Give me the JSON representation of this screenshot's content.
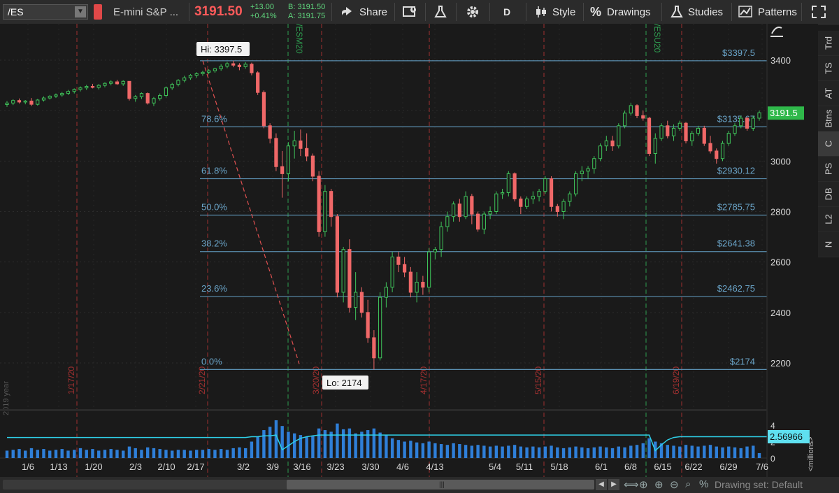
{
  "header": {
    "symbol": "/ES",
    "description": "E-mini S&P ...",
    "last": "3191.50",
    "change": "+13.00",
    "change_pct": "+0.41%",
    "bid": "B: 3191.50",
    "ask": "A: 3191.75",
    "share_label": "Share",
    "aggregation": "D",
    "style_label": "Style",
    "drawings_label": "Drawings",
    "studies_label": "Studies",
    "patterns_label": "Patterns",
    "icons": [
      "share-icon",
      "alert-icon",
      "flask-icon",
      "gear-icon",
      "candle-icon",
      "percent-icon",
      "studies-flask-icon",
      "patterns-icon"
    ]
  },
  "right_tabs": [
    "Trd",
    "TS",
    "AT",
    "Btns",
    "C",
    "PS",
    "DB",
    "L2",
    "N"
  ],
  "bottom": {
    "drawing_set": "Drawing set: Default"
  },
  "side_label": "2019 year",
  "volume_axis_label": "<millions>",
  "chart_data": {
    "type": "candlestick",
    "price_axis": {
      "ticks": [
        2200,
        2400,
        2600,
        2800,
        3000,
        3200,
        3400
      ],
      "range": [
        2040,
        3540
      ]
    },
    "volume_axis": {
      "ticks": [
        0,
        2,
        4
      ],
      "range": [
        0,
        4.8
      ]
    },
    "last_price_label": "3191.5",
    "volume_label": "2.56966",
    "x_ticks": [
      "1/6",
      "1/13",
      "1/20",
      "2/3",
      "2/10",
      "2/17",
      "3/2",
      "3/9",
      "3/16",
      "3/23",
      "3/30",
      "4/6",
      "4/13",
      "5/4",
      "5/11",
      "5/18",
      "6/1",
      "6/8",
      "6/15",
      "6/22",
      "6/29",
      "7/6"
    ],
    "hi_label": "Hi: 3397.5",
    "lo_label": "Lo: 2174",
    "fib_levels": [
      {
        "price": 3397.5,
        "pct": "",
        "label": "$3397.5"
      },
      {
        "price": 3135.67,
        "pct": "78.6%",
        "label": "$3135.67"
      },
      {
        "price": 2930.12,
        "pct": "61.8%",
        "label": "$2930.12"
      },
      {
        "price": 2785.75,
        "pct": "50.0%",
        "label": "$2785.75"
      },
      {
        "price": 2641.38,
        "pct": "38.2%",
        "label": "$2641.38"
      },
      {
        "price": 2462.75,
        "pct": "23.6%",
        "label": "$2462.75"
      },
      {
        "price": 2174,
        "pct": "0.0%",
        "label": "$2174"
      }
    ],
    "red_markers": [
      "1/17/20",
      "2/21/20",
      "3/20/20",
      "4/17/20",
      "5/15/20",
      "6/19/20"
    ],
    "green_markers": [
      "/ESM20",
      "/ESU20"
    ],
    "candles": [
      [
        3224,
        3238,
        3215,
        3230
      ],
      [
        3230,
        3245,
        3222,
        3240
      ],
      [
        3240,
        3248,
        3228,
        3234
      ],
      [
        3234,
        3242,
        3225,
        3238
      ],
      [
        3238,
        3250,
        3218,
        3225
      ],
      [
        3225,
        3246,
        3220,
        3242
      ],
      [
        3242,
        3256,
        3236,
        3250
      ],
      [
        3250,
        3262,
        3244,
        3257
      ],
      [
        3257,
        3268,
        3250,
        3262
      ],
      [
        3262,
        3274,
        3255,
        3268
      ],
      [
        3268,
        3282,
        3262,
        3276
      ],
      [
        3276,
        3288,
        3268,
        3284
      ],
      [
        3284,
        3296,
        3276,
        3290
      ],
      [
        3290,
        3302,
        3282,
        3296
      ],
      [
        3296,
        3306,
        3288,
        3292
      ],
      [
        3292,
        3305,
        3284,
        3300
      ],
      [
        3300,
        3312,
        3292,
        3308
      ],
      [
        3308,
        3320,
        3300,
        3314
      ],
      [
        3314,
        3322,
        3302,
        3306
      ],
      [
        3306,
        3320,
        3298,
        3316
      ],
      [
        3316,
        3316,
        3240,
        3248
      ],
      [
        3248,
        3262,
        3235,
        3255
      ],
      [
        3255,
        3272,
        3246,
        3268
      ],
      [
        3268,
        3272,
        3224,
        3230
      ],
      [
        3230,
        3254,
        3218,
        3248
      ],
      [
        3248,
        3268,
        3240,
        3260
      ],
      [
        3260,
        3296,
        3252,
        3290
      ],
      [
        3290,
        3310,
        3282,
        3304
      ],
      [
        3304,
        3325,
        3296,
        3320
      ],
      [
        3320,
        3338,
        3312,
        3330
      ],
      [
        3330,
        3345,
        3322,
        3340
      ],
      [
        3340,
        3352,
        3330,
        3346
      ],
      [
        3346,
        3358,
        3338,
        3352
      ],
      [
        3352,
        3364,
        3344,
        3358
      ],
      [
        3358,
        3370,
        3350,
        3366
      ],
      [
        3366,
        3384,
        3358,
        3376
      ],
      [
        3376,
        3393,
        3368,
        3386
      ],
      [
        3386,
        3397.5,
        3372,
        3380
      ],
      [
        3380,
        3388,
        3360,
        3374
      ],
      [
        3374,
        3392,
        3366,
        3384
      ],
      [
        3384,
        3390,
        3340,
        3350
      ],
      [
        3350,
        3356,
        3262,
        3272
      ],
      [
        3272,
        3280,
        3130,
        3140
      ],
      [
        3140,
        3150,
        3070,
        3090
      ],
      [
        3090,
        3110,
        2960,
        2978
      ],
      [
        2978,
        3040,
        2855,
        2950
      ],
      [
        2950,
        3075,
        2920,
        3060
      ],
      [
        3060,
        3120,
        3010,
        3080
      ],
      [
        3080,
        3125,
        3020,
        3050
      ],
      [
        3050,
        3110,
        3000,
        3020
      ],
      [
        3020,
        3030,
        2920,
        2940
      ],
      [
        2940,
        2960,
        2700,
        2720
      ],
      [
        2720,
        2905,
        2700,
        2880
      ],
      [
        2880,
        2890,
        2740,
        2780
      ],
      [
        2780,
        2790,
        2460,
        2480
      ],
      [
        2480,
        2660,
        2440,
        2650
      ],
      [
        2650,
        2690,
        2400,
        2420
      ],
      [
        2420,
        2560,
        2370,
        2480
      ],
      [
        2480,
        2500,
        2380,
        2400
      ],
      [
        2400,
        2450,
        2280,
        2300
      ],
      [
        2300,
        2330,
        2174,
        2220
      ],
      [
        2220,
        2480,
        2210,
        2460
      ],
      [
        2460,
        2520,
        2420,
        2500
      ],
      [
        2500,
        2640,
        2480,
        2620
      ],
      [
        2620,
        2640,
        2560,
        2590
      ],
      [
        2590,
        2620,
        2540,
        2560
      ],
      [
        2560,
        2580,
        2460,
        2480
      ],
      [
        2480,
        2560,
        2440,
        2520
      ],
      [
        2520,
        2545,
        2470,
        2500
      ],
      [
        2500,
        2655,
        2480,
        2640
      ],
      [
        2640,
        2660,
        2610,
        2650
      ],
      [
        2650,
        2760,
        2620,
        2740
      ],
      [
        2740,
        2800,
        2720,
        2780
      ],
      [
        2780,
        2840,
        2760,
        2830
      ],
      [
        2830,
        2850,
        2760,
        2780
      ],
      [
        2780,
        2880,
        2770,
        2860
      ],
      [
        2860,
        2870,
        2750,
        2790
      ],
      [
        2790,
        2800,
        2720,
        2730
      ],
      [
        2730,
        2800,
        2710,
        2790
      ],
      [
        2790,
        2820,
        2770,
        2800
      ],
      [
        2800,
        2880,
        2790,
        2870
      ],
      [
        2870,
        2890,
        2850,
        2875
      ],
      [
        2875,
        2960,
        2860,
        2950
      ],
      [
        2950,
        2955,
        2840,
        2850
      ],
      [
        2850,
        2860,
        2790,
        2820
      ],
      [
        2820,
        2860,
        2810,
        2850
      ],
      [
        2850,
        2880,
        2830,
        2860
      ],
      [
        2860,
        2890,
        2840,
        2880
      ],
      [
        2880,
        2940,
        2870,
        2930
      ],
      [
        2930,
        2940,
        2800,
        2820
      ],
      [
        2820,
        2830,
        2780,
        2800
      ],
      [
        2800,
        2850,
        2770,
        2840
      ],
      [
        2840,
        2880,
        2820,
        2870
      ],
      [
        2870,
        2960,
        2860,
        2950
      ],
      [
        2950,
        2980,
        2920,
        2960
      ],
      [
        2960,
        2980,
        2930,
        2970
      ],
      [
        2970,
        3020,
        2950,
        3010
      ],
      [
        3010,
        3070,
        3000,
        3060
      ],
      [
        3060,
        3100,
        3040,
        3080
      ],
      [
        3080,
        3100,
        3040,
        3060
      ],
      [
        3060,
        3150,
        3050,
        3140
      ],
      [
        3140,
        3200,
        3130,
        3190
      ],
      [
        3190,
        3230,
        3180,
        3220
      ],
      [
        3220,
        3225,
        3170,
        3180
      ],
      [
        3180,
        3200,
        3160,
        3170
      ],
      [
        3170,
        3175,
        3020,
        3030
      ],
      [
        3030,
        3110,
        2990,
        3090
      ],
      [
        3090,
        3150,
        3080,
        3140
      ],
      [
        3140,
        3160,
        3090,
        3100
      ],
      [
        3100,
        3145,
        3080,
        3130
      ],
      [
        3130,
        3160,
        3120,
        3150
      ],
      [
        3150,
        3155,
        3070,
        3080
      ],
      [
        3080,
        3120,
        3060,
        3110
      ],
      [
        3110,
        3140,
        3100,
        3130
      ],
      [
        3130,
        3140,
        3060,
        3070
      ],
      [
        3070,
        3100,
        3030,
        3040
      ],
      [
        3040,
        3050,
        2990,
        3010
      ],
      [
        3010,
        3080,
        3000,
        3070
      ],
      [
        3070,
        3120,
        3060,
        3110
      ],
      [
        3110,
        3150,
        3100,
        3140
      ],
      [
        3140,
        3180,
        3130,
        3170
      ],
      [
        3170,
        3175,
        3120,
        3130
      ],
      [
        3130,
        3180,
        3120,
        3170
      ],
      [
        3170,
        3200,
        3160,
        3191.5
      ]
    ],
    "volume": [
      0.9,
      1.0,
      1.1,
      0.9,
      1.2,
      1.0,
      1.1,
      0.9,
      1.0,
      1.1,
      0.9,
      1.0,
      1.2,
      1.0,
      1.1,
      0.9,
      1.0,
      1.1,
      1.0,
      0.9,
      1.4,
      1.2,
      1.0,
      1.3,
      1.2,
      1.1,
      1.0,
      0.9,
      1.0,
      1.0,
      0.9,
      1.0,
      1.0,
      1.1,
      1.0,
      1.1,
      1.0,
      1.2,
      1.3,
      1.2,
      2.0,
      2.6,
      3.4,
      3.8,
      4.6,
      3.9,
      3.2,
      3.0,
      2.8,
      2.6,
      2.7,
      3.6,
      3.4,
      3.2,
      4.2,
      3.5,
      3.6,
      3.0,
      3.2,
      3.4,
      3.6,
      3.1,
      2.8,
      2.4,
      2.2,
      2.0,
      2.1,
      1.9,
      1.8,
      2.0,
      1.8,
      1.7,
      1.6,
      1.8,
      1.7,
      1.6,
      1.5,
      1.6,
      1.5,
      1.4,
      1.5,
      1.4,
      1.5,
      1.6,
      1.4,
      1.3,
      1.4,
      1.3,
      1.4,
      1.5,
      1.3,
      1.2,
      1.3,
      1.4,
      1.3,
      1.2,
      1.3,
      1.4,
      1.3,
      1.2,
      1.4,
      1.3,
      1.5,
      1.6,
      1.8,
      2.4,
      2.0,
      1.8,
      1.6,
      1.5,
      1.4,
      1.6,
      1.5,
      1.4,
      1.5,
      1.6,
      1.4,
      1.3,
      1.4,
      1.3,
      1.2,
      1.4,
      1.5,
      0.6
    ],
    "volume_ma": [
      2.5,
      2.5,
      2.5,
      2.5,
      2.5,
      2.5,
      2.5,
      2.5,
      2.5,
      2.5,
      2.5,
      2.5,
      2.5,
      2.5,
      2.5,
      2.5,
      2.5,
      2.5,
      2.5,
      2.5,
      2.5,
      2.5,
      2.5,
      2.5,
      2.5,
      2.5,
      2.5,
      2.5,
      2.5,
      2.5,
      2.5,
      2.5,
      2.5,
      2.5,
      2.5,
      2.5,
      2.5,
      2.5,
      2.5,
      2.5,
      2.6,
      2.6,
      2.7,
      2.7,
      2.8,
      1.0,
      1.5,
      2.0,
      2.4,
      2.6,
      2.7,
      2.8,
      2.8,
      2.8,
      2.8,
      2.8,
      2.8,
      2.8,
      2.8,
      2.8,
      2.8,
      2.8,
      2.8,
      2.8,
      2.8,
      2.8,
      2.8,
      2.8,
      2.8,
      2.8,
      2.8,
      2.8,
      2.8,
      2.8,
      2.8,
      2.8,
      2.8,
      2.8,
      2.8,
      2.8,
      2.8,
      2.8,
      2.8,
      2.8,
      2.8,
      2.8,
      2.8,
      2.8,
      2.8,
      2.8,
      2.8,
      2.8,
      2.8,
      2.8,
      2.8,
      2.8,
      2.8,
      2.8,
      2.8,
      2.8,
      2.8,
      2.8,
      2.8,
      2.8,
      2.8,
      2.8,
      0.9,
      1.6,
      2.2,
      2.5,
      2.6,
      2.6,
      2.6,
      2.6,
      2.6,
      2.6,
      2.6,
      2.6,
      2.6,
      2.6,
      2.6,
      2.6,
      2.6,
      2.6
    ]
  }
}
